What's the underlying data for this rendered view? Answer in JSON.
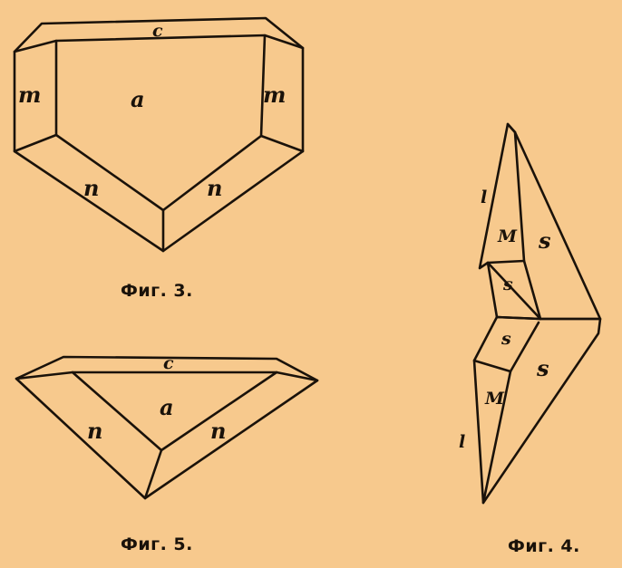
{
  "figures": {
    "fig3": {
      "caption": "Фиг. 3.",
      "labels": {
        "top": "c",
        "center": "a",
        "left_side": "m",
        "right_side": "m",
        "left_bottom": "n",
        "right_bottom": "n"
      }
    },
    "fig5": {
      "caption": "Фиг. 5.",
      "labels": {
        "top": "c",
        "center": "a",
        "left_bottom": "n",
        "right_bottom": "n"
      }
    },
    "fig4": {
      "caption": "Фиг. 4.",
      "labels": {
        "upper_l": "l",
        "upper_M": "M",
        "upper_s_side": "s",
        "upper_s": "s",
        "lower_s": "s",
        "lower_s_side": "s",
        "lower_M": "M",
        "lower_l": "l"
      }
    }
  }
}
